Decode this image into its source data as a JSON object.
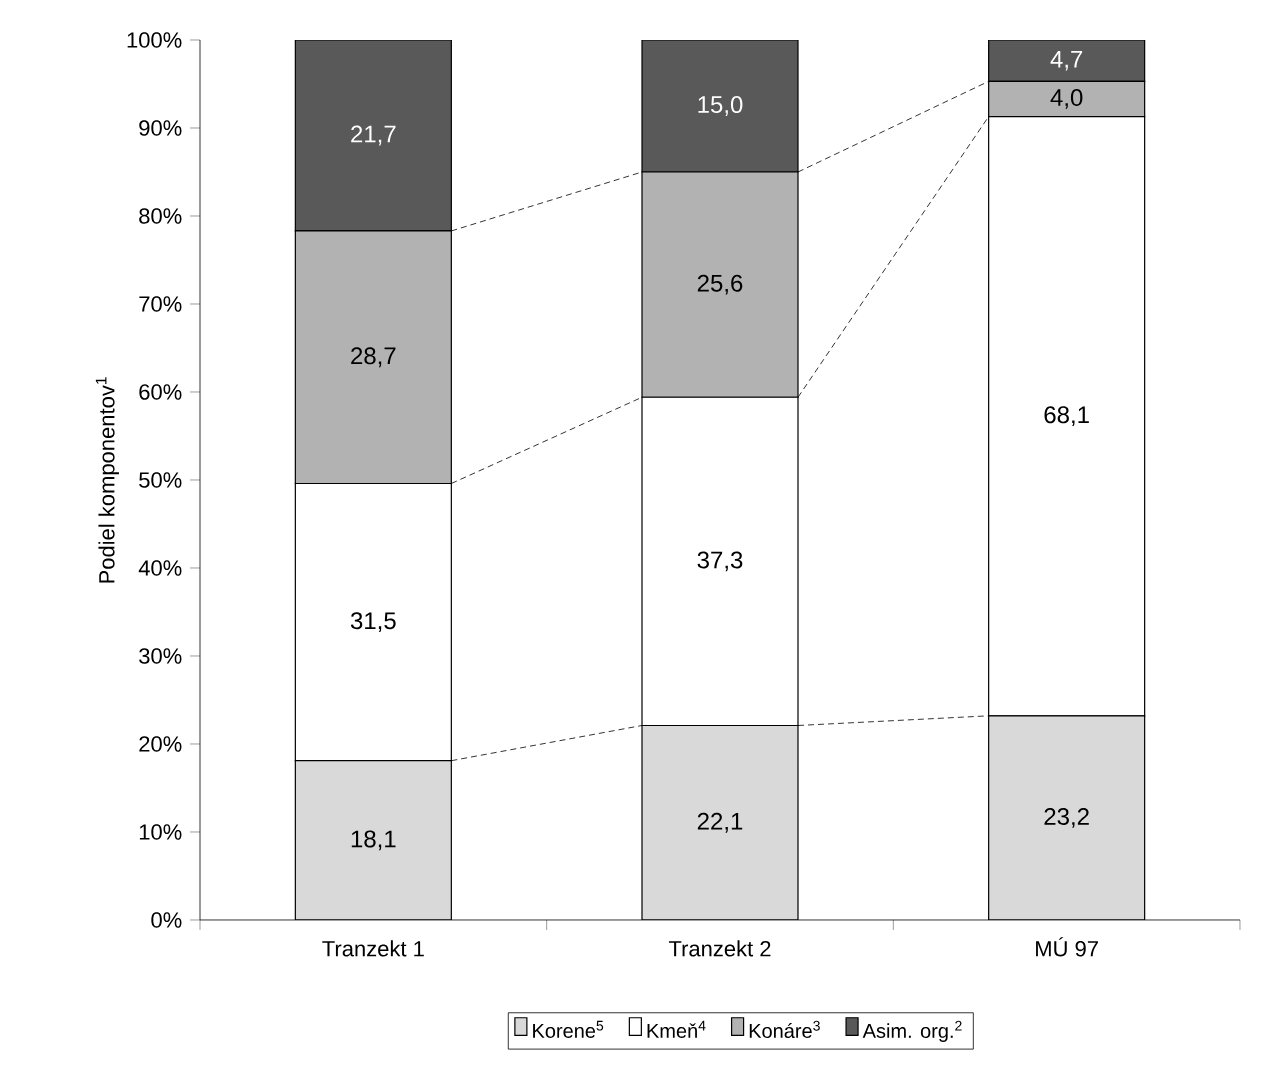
{
  "chart_data": {
    "type": "bar",
    "stacked": true,
    "categories": [
      "Tranzekt 1",
      "Tranzekt 2",
      "MÚ 97"
    ],
    "ylabel": "Podiel komponentov$^{1}$",
    "ylim": [
      0,
      100
    ],
    "yticks": [
      {
        "value": 0,
        "label": "0%"
      },
      {
        "value": 10,
        "label": "10%"
      },
      {
        "value": 20,
        "label": "20%"
      },
      {
        "value": 30,
        "label": "30%"
      },
      {
        "value": 40,
        "label": "40%"
      },
      {
        "value": 50,
        "label": "50%"
      },
      {
        "value": 60,
        "label": "60%"
      },
      {
        "value": 70,
        "label": "70%"
      },
      {
        "value": 80,
        "label": "80%"
      },
      {
        "value": 90,
        "label": "90%"
      },
      {
        "value": 100,
        "label": "100%"
      }
    ],
    "series": [
      {
        "name": "Korene$^{5}$",
        "color": "#d9d9d9",
        "values": [
          18.1,
          22.1,
          23.2
        ],
        "value_labels": [
          "18,1",
          "22,1",
          "23,2"
        ]
      },
      {
        "name": "Kmeň$^{4}$",
        "color": "#ffffff",
        "values": [
          31.5,
          37.3,
          68.1
        ],
        "value_labels": [
          "31,5",
          "37,3",
          "68,1"
        ]
      },
      {
        "name": "Konáre$^{3}$",
        "color": "#b2b2b2",
        "values": [
          28.7,
          25.6,
          4.0
        ],
        "value_labels": [
          "28,7",
          "25,6",
          "4,0"
        ]
      },
      {
        "name": "Asim. org.$^{2}$",
        "color": "#595959",
        "values": [
          21.7,
          15.0,
          4.7
        ],
        "value_labels": [
          "21,7",
          "15,0",
          "4,7"
        ]
      }
    ],
    "legend": "bottom",
    "grid": false
  }
}
